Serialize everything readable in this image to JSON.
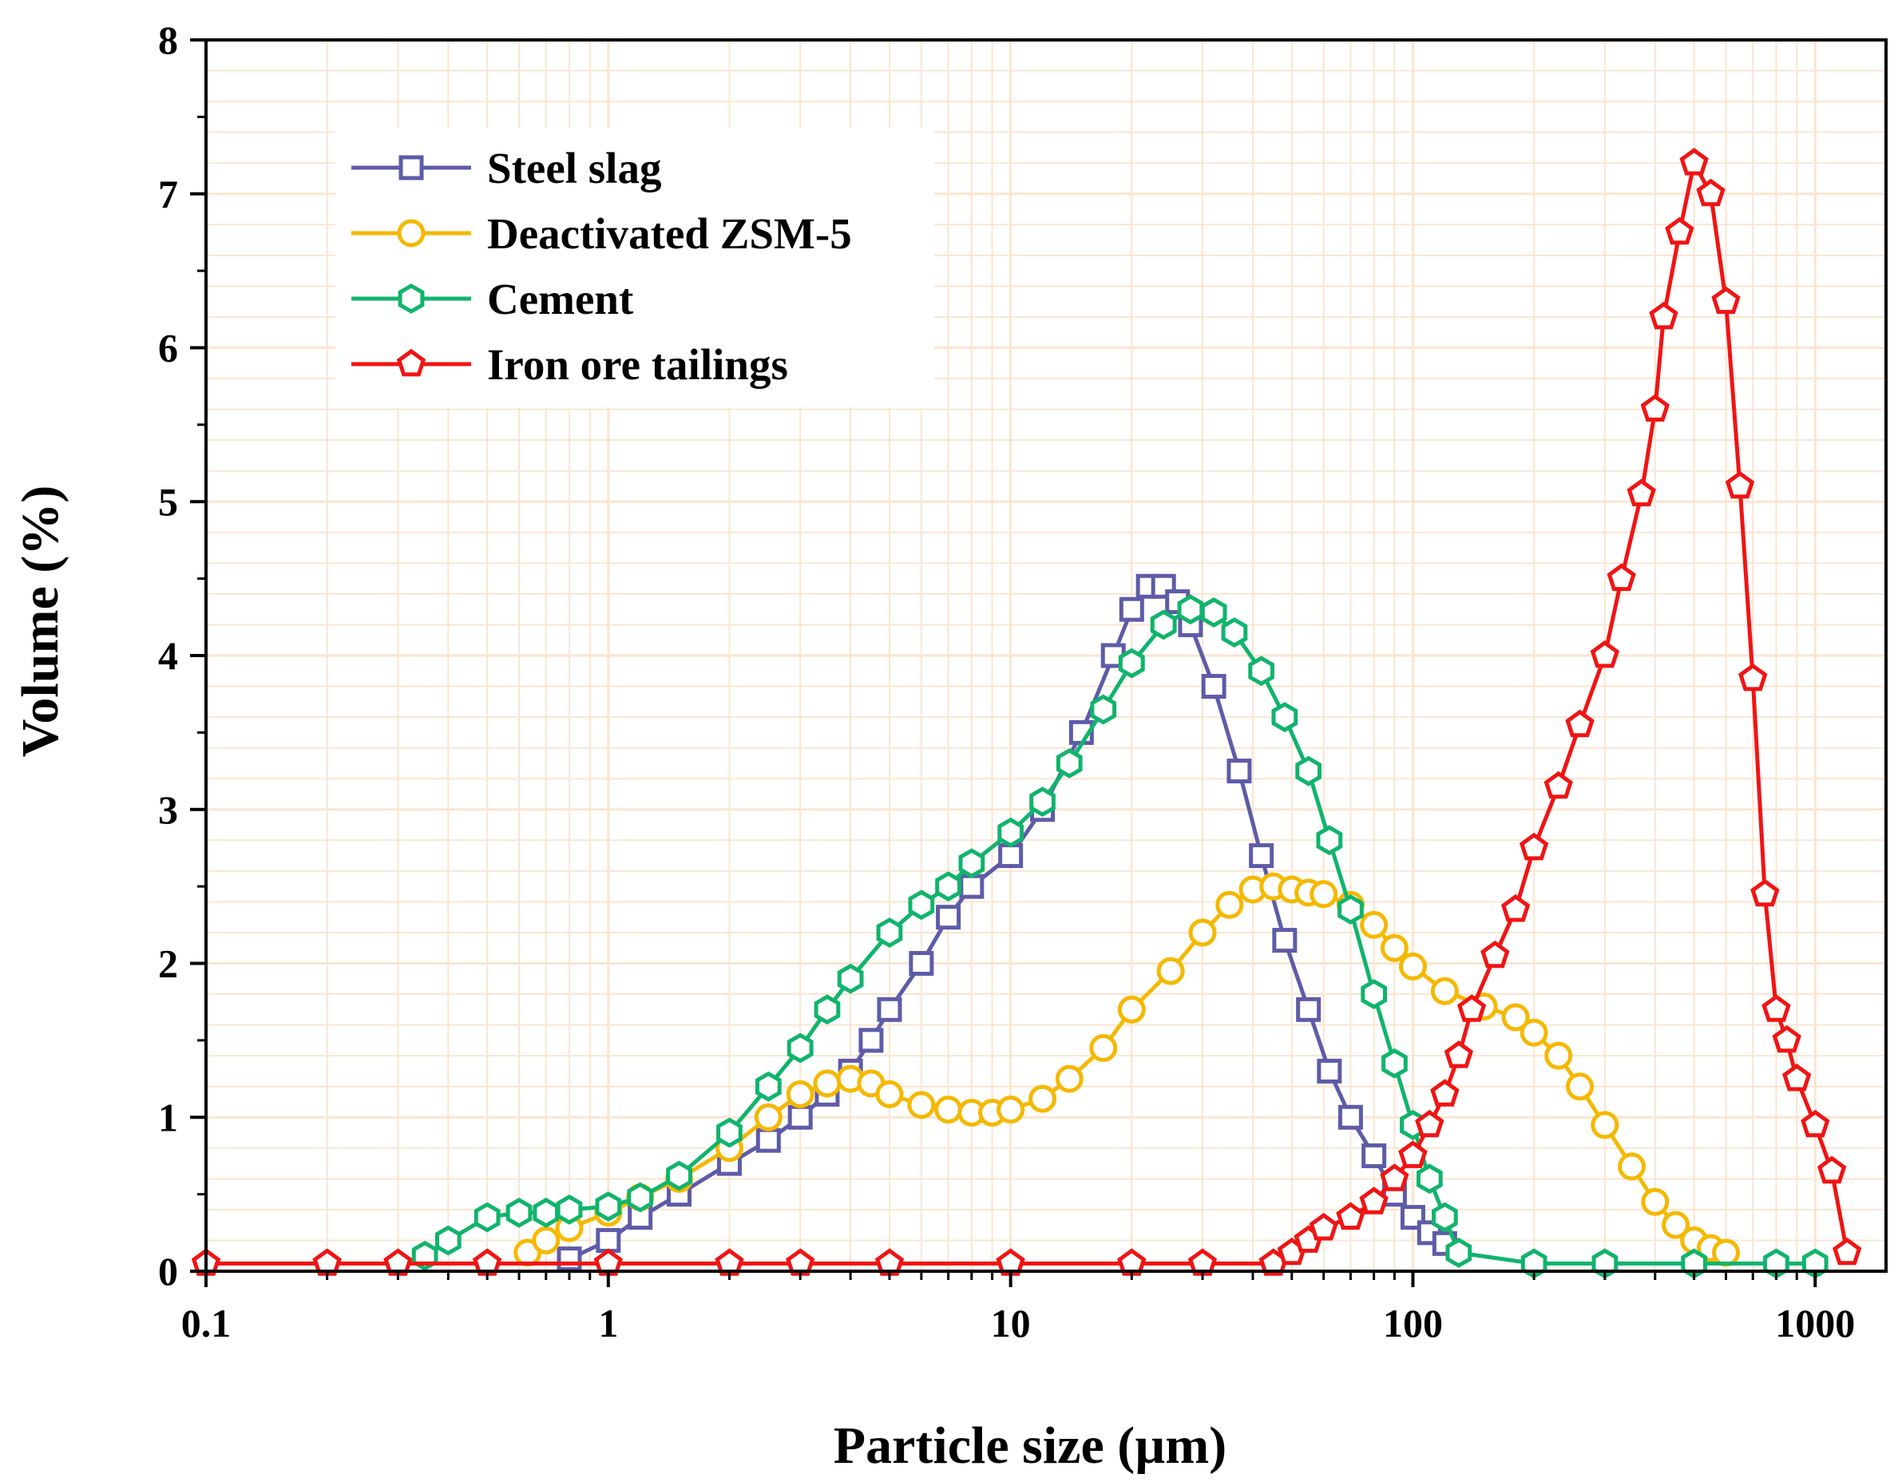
{
  "chart_data": {
    "type": "line",
    "xscale": "log",
    "xlabel": "Particle size (µm)",
    "ylabel": "Volume (%)",
    "xlim": [
      0.1,
      1500
    ],
    "ylim": [
      0,
      8
    ],
    "xticks": [
      0.1,
      1,
      10,
      100,
      1000
    ],
    "xtick_labels": [
      "0.1",
      "1",
      "10",
      "100",
      "1000"
    ],
    "yticks": [
      0,
      1,
      2,
      3,
      4,
      5,
      6,
      7,
      8
    ],
    "ytick_labels": [
      "0",
      "1",
      "2",
      "3",
      "4",
      "5",
      "6",
      "7",
      "8"
    ],
    "grid": true,
    "grid_color": "#fbe5cf",
    "legend_position": "top-left",
    "series": [
      {
        "name": "Steel slag",
        "color": "#5e5ba8",
        "marker": "square",
        "x": [
          0.8,
          1,
          1.2,
          1.5,
          2,
          2.5,
          3,
          3.5,
          4,
          4.5,
          5,
          6,
          7,
          8,
          10,
          12,
          15,
          18,
          20,
          22,
          24,
          26,
          28,
          32,
          37,
          42,
          48,
          55,
          62,
          70,
          80,
          90,
          100,
          110,
          120
        ],
        "y": [
          0.08,
          0.2,
          0.35,
          0.5,
          0.7,
          0.85,
          1.0,
          1.15,
          1.3,
          1.5,
          1.7,
          2.0,
          2.3,
          2.5,
          2.7,
          3.0,
          3.5,
          4.0,
          4.3,
          4.45,
          4.45,
          4.35,
          4.2,
          3.8,
          3.25,
          2.7,
          2.15,
          1.7,
          1.3,
          1.0,
          0.75,
          0.5,
          0.35,
          0.25,
          0.18
        ]
      },
      {
        "name": "Deactivated ZSM-5",
        "color": "#f5b800",
        "marker": "circle",
        "x": [
          0.63,
          0.7,
          0.8,
          1,
          1.2,
          1.5,
          2,
          2.5,
          3,
          3.5,
          4,
          4.5,
          5,
          6,
          7,
          8,
          9,
          10,
          12,
          14,
          17,
          20,
          25,
          30,
          35,
          40,
          45,
          50,
          55,
          60,
          70,
          80,
          90,
          100,
          120,
          150,
          180,
          200,
          230,
          260,
          300,
          350,
          400,
          450,
          500,
          550,
          600
        ],
        "y": [
          0.12,
          0.2,
          0.28,
          0.38,
          0.48,
          0.6,
          0.8,
          1.0,
          1.15,
          1.22,
          1.25,
          1.22,
          1.15,
          1.08,
          1.05,
          1.03,
          1.03,
          1.05,
          1.12,
          1.25,
          1.45,
          1.7,
          1.95,
          2.2,
          2.38,
          2.48,
          2.5,
          2.48,
          2.46,
          2.45,
          2.38,
          2.25,
          2.1,
          1.98,
          1.82,
          1.72,
          1.65,
          1.55,
          1.4,
          1.2,
          0.95,
          0.68,
          0.45,
          0.3,
          0.2,
          0.15,
          0.12
        ]
      },
      {
        "name": "Cement",
        "color": "#10b46c",
        "marker": "hexagon",
        "x": [
          0.35,
          0.4,
          0.5,
          0.6,
          0.7,
          0.8,
          1,
          1.2,
          1.5,
          2,
          2.5,
          3,
          3.5,
          4,
          5,
          6,
          7,
          8,
          10,
          12,
          14,
          17,
          20,
          24,
          28,
          32,
          36,
          42,
          48,
          55,
          62,
          70,
          80,
          90,
          100,
          110,
          120,
          130,
          200,
          300,
          500,
          800,
          1000
        ],
        "y": [
          0.1,
          0.2,
          0.35,
          0.38,
          0.38,
          0.4,
          0.42,
          0.48,
          0.62,
          0.9,
          1.2,
          1.45,
          1.7,
          1.9,
          2.2,
          2.38,
          2.5,
          2.65,
          2.85,
          3.05,
          3.3,
          3.65,
          3.95,
          4.2,
          4.3,
          4.28,
          4.15,
          3.9,
          3.6,
          3.25,
          2.8,
          2.35,
          1.8,
          1.35,
          0.95,
          0.6,
          0.35,
          0.12,
          0.05,
          0.05,
          0.05,
          0.05,
          0.05
        ]
      },
      {
        "name": "Iron ore tailings",
        "color": "#f01414",
        "marker": "pentagon",
        "x": [
          0.1,
          0.2,
          0.3,
          0.5,
          1,
          2,
          3,
          5,
          10,
          20,
          30,
          45,
          50,
          55,
          60,
          70,
          80,
          90,
          100,
          110,
          120,
          130,
          140,
          160,
          180,
          200,
          230,
          260,
          300,
          330,
          370,
          400,
          420,
          460,
          500,
          550,
          600,
          650,
          700,
          750,
          800,
          850,
          900,
          1000,
          1100,
          1200
        ],
        "y": [
          0.05,
          0.05,
          0.05,
          0.05,
          0.05,
          0.05,
          0.05,
          0.05,
          0.05,
          0.05,
          0.05,
          0.05,
          0.12,
          0.2,
          0.28,
          0.35,
          0.45,
          0.6,
          0.75,
          0.95,
          1.15,
          1.4,
          1.7,
          2.05,
          2.35,
          2.75,
          3.15,
          3.55,
          4.0,
          4.5,
          5.05,
          5.6,
          6.2,
          6.75,
          7.2,
          7.0,
          6.3,
          5.1,
          3.85,
          2.45,
          1.7,
          1.5,
          1.25,
          0.95,
          0.65,
          0.12
        ]
      }
    ]
  }
}
